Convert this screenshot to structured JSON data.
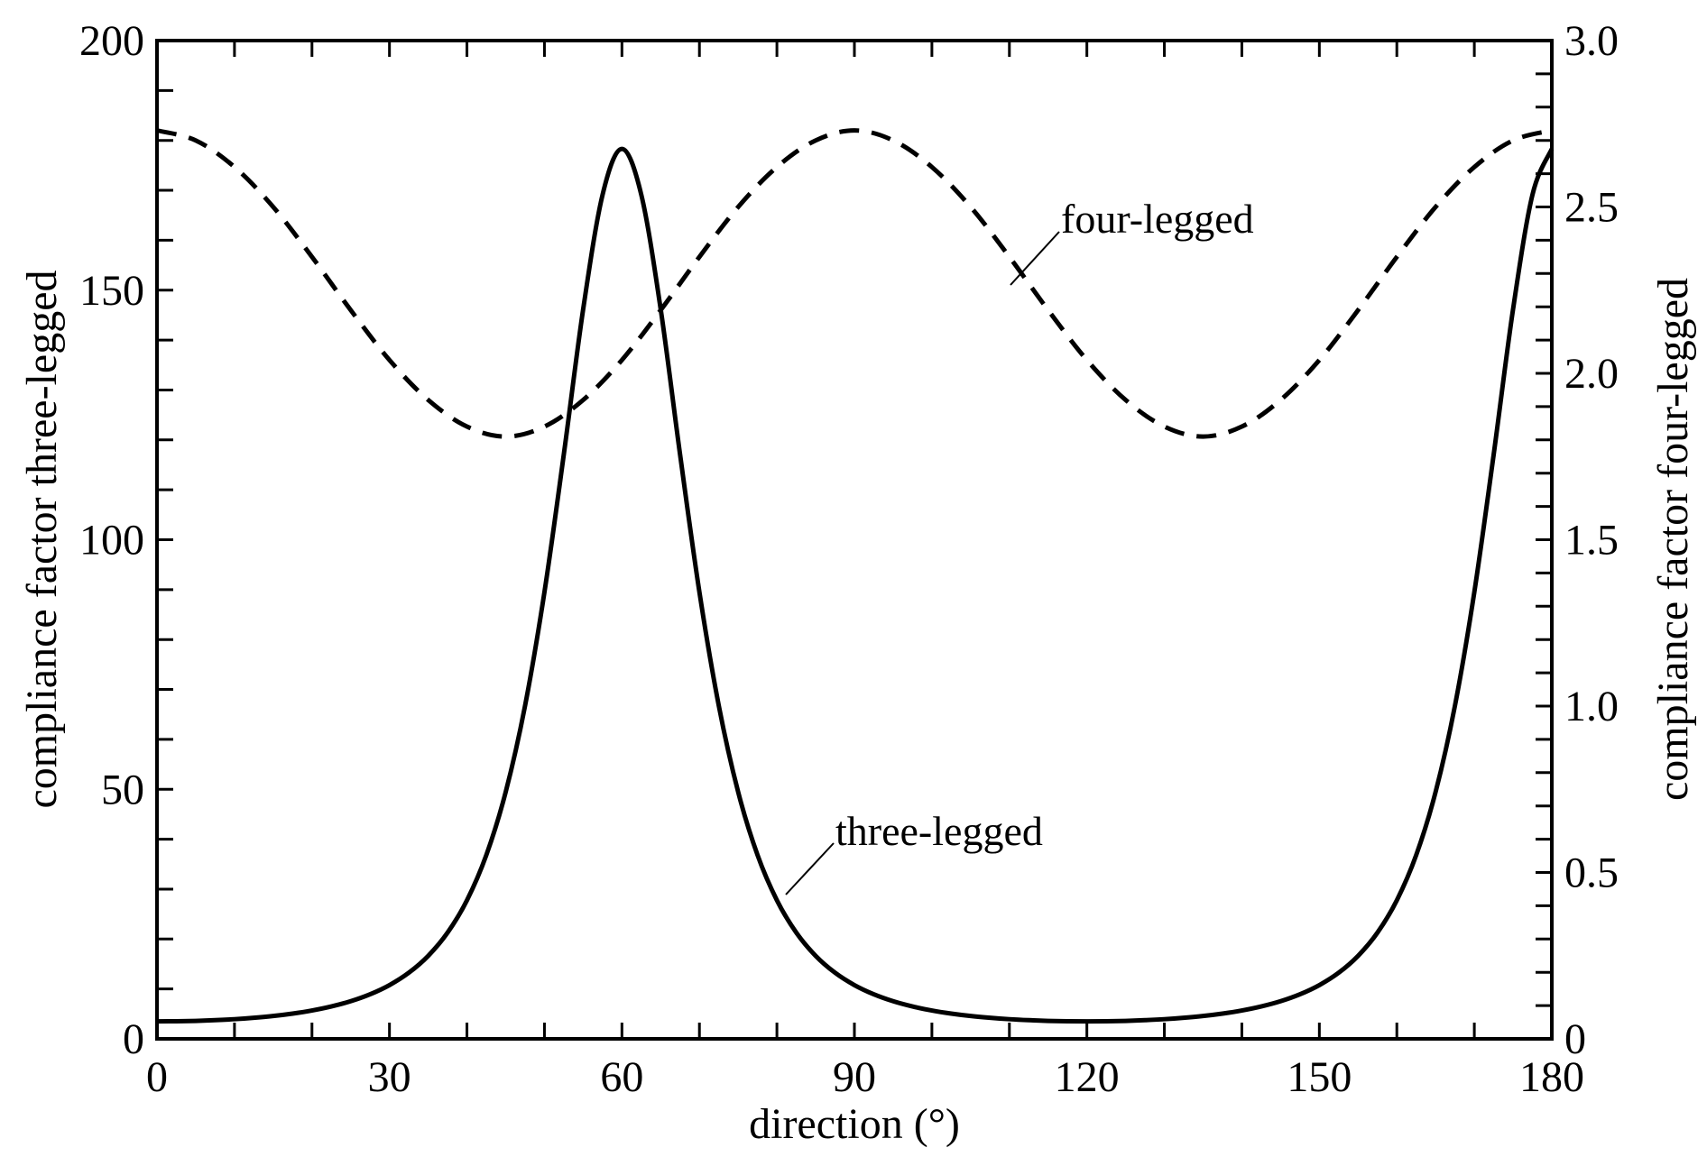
{
  "chart_data": {
    "type": "line",
    "title": "",
    "xlabel": "direction (°)",
    "ylabel_left": "compliance factor three-legged",
    "ylabel_right": "compliance factor four-legged",
    "xlim": [
      0,
      180
    ],
    "ylim_left": [
      0,
      200
    ],
    "ylim_right": [
      0,
      3.0
    ],
    "x_ticks": [
      "0",
      "30",
      "60",
      "90",
      "120",
      "150",
      "180"
    ],
    "y_left_ticks": [
      "0",
      "50",
      "100",
      "150",
      "200"
    ],
    "y_right_ticks": [
      "0",
      "0.5",
      "1.0",
      "1.5",
      "2.0",
      "2.5",
      "3.0"
    ],
    "grid": false,
    "series": [
      {
        "name": "three-legged",
        "axis": "left",
        "style": "solid",
        "x": [
          0,
          2.5,
          5,
          7.5,
          10,
          12.5,
          15,
          17.5,
          20,
          22.5,
          25,
          27.5,
          30,
          32.5,
          35,
          37.5,
          40,
          42.5,
          45,
          47.5,
          50,
          52.5,
          55,
          57.5,
          60,
          62.5,
          65,
          67.5,
          70,
          72.5,
          75,
          77.5,
          80,
          82.5,
          85,
          87.5,
          90,
          92.5,
          95,
          97.5,
          100,
          102.5,
          105,
          107.5,
          110,
          112.5,
          115,
          117.5,
          120,
          122.5,
          125,
          127.5,
          130,
          132.5,
          135,
          137.5,
          140,
          142.5,
          145,
          147.5,
          150,
          152.5,
          155,
          157.5,
          160,
          162.5,
          165,
          167.5,
          170,
          172.5,
          175,
          177.5,
          180
        ],
        "y": [
          3.5,
          3.53,
          3.6,
          3.74,
          3.94,
          4.22,
          4.58,
          5.06,
          5.68,
          6.49,
          7.54,
          8.93,
          10.77,
          13.25,
          16.63,
          21.28,
          27.76,
          36.82,
          49.45,
          66.75,
          89.5,
          117.1,
          146.2,
          169.1,
          178.3,
          169.1,
          146.2,
          117.1,
          89.5,
          66.75,
          49.45,
          36.82,
          27.76,
          21.28,
          16.63,
          13.25,
          10.77,
          8.93,
          7.54,
          6.49,
          5.68,
          5.06,
          4.58,
          4.22,
          3.94,
          3.74,
          3.6,
          3.53,
          3.5,
          3.53,
          3.6,
          3.74,
          3.94,
          4.22,
          4.58,
          5.06,
          5.68,
          6.49,
          7.54,
          8.93,
          10.77,
          13.25,
          16.63,
          21.28,
          27.76,
          36.82,
          49.45,
          66.75,
          89.5,
          117.1,
          146.2,
          169.1,
          178.3
        ]
      },
      {
        "name": "four-legged",
        "axis": "right",
        "style": "dashed",
        "x": [
          0,
          5,
          10,
          15,
          20,
          25,
          30,
          35,
          40,
          45,
          50,
          55,
          60,
          65,
          70,
          75,
          80,
          85,
          90,
          95,
          100,
          105,
          110,
          115,
          120,
          125,
          130,
          135,
          140,
          145,
          150,
          155,
          160,
          165,
          170,
          175,
          180
        ],
        "y": [
          2.73,
          2.7,
          2.62,
          2.5,
          2.35,
          2.19,
          2.04,
          1.92,
          1.84,
          1.81,
          1.84,
          1.92,
          2.04,
          2.19,
          2.35,
          2.5,
          2.62,
          2.7,
          2.73,
          2.7,
          2.62,
          2.5,
          2.35,
          2.19,
          2.04,
          1.92,
          1.84,
          1.81,
          1.84,
          1.92,
          2.04,
          2.19,
          2.35,
          2.5,
          2.62,
          2.7,
          2.73
        ]
      }
    ],
    "annotations": [
      "four-legged",
      "three-legged"
    ]
  }
}
